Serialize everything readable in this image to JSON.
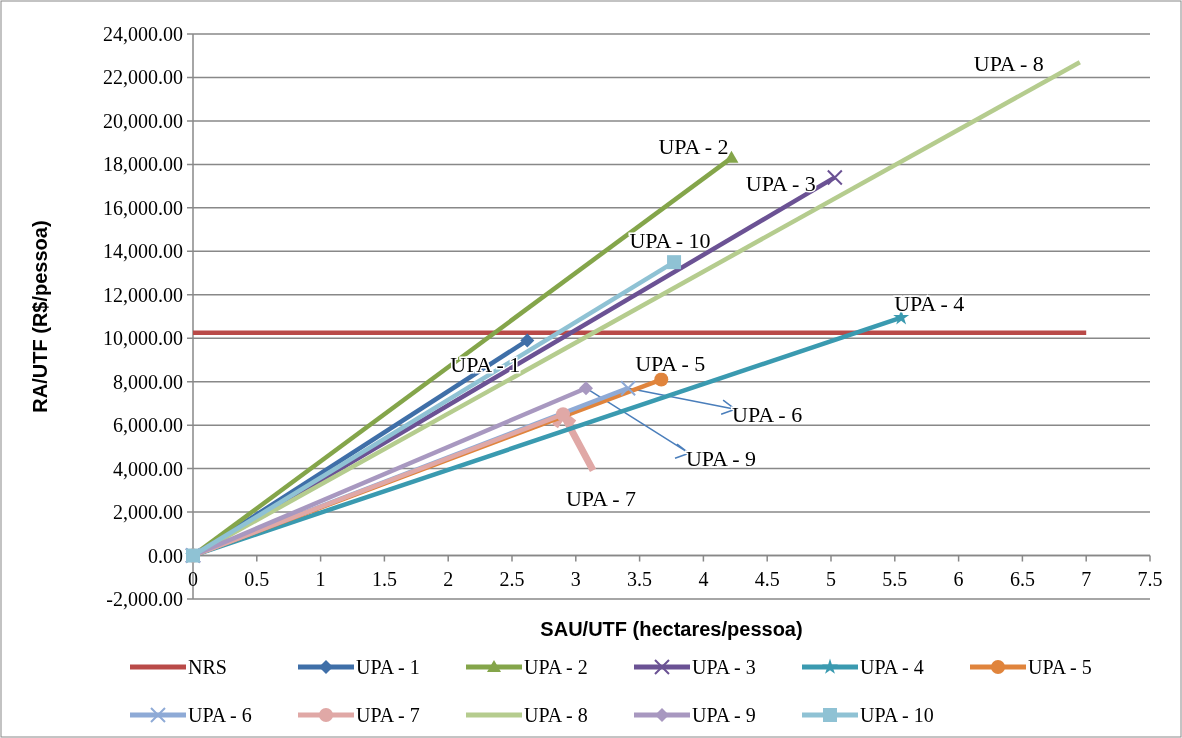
{
  "chart_data": {
    "type": "line",
    "xlabel": "SAU/UTF (hectares/pessoa)",
    "ylabel": "RA/UTF (R$/pessoa)",
    "xlim": [
      0,
      7.5
    ],
    "xticks": [
      0,
      0.5,
      1,
      1.5,
      2,
      2.5,
      3,
      3.5,
      4,
      4.5,
      5,
      5.5,
      6,
      6.5,
      7,
      7.5
    ],
    "ylim": [
      -2000,
      24000
    ],
    "yticks": [
      {
        "value": -2000,
        "label": "-2,000.00"
      },
      {
        "value": 0,
        "label": "0.00"
      },
      {
        "value": 2000,
        "label": "2,000.00"
      },
      {
        "value": 4000,
        "label": "4,000.00"
      },
      {
        "value": 6000,
        "label": "6,000.00"
      },
      {
        "value": 8000,
        "label": "8,000.00"
      },
      {
        "value": 10000,
        "label": "10,000.00"
      },
      {
        "value": 12000,
        "label": "12,000.00"
      },
      {
        "value": 14000,
        "label": "14,000.00"
      },
      {
        "value": 16000,
        "label": "16,000.00"
      },
      {
        "value": 18000,
        "label": "18,000.00"
      },
      {
        "value": 20000,
        "label": "20,000.00"
      },
      {
        "value": 22000,
        "label": "22,000.00"
      },
      {
        "value": 24000,
        "label": "24,000.00"
      }
    ],
    "grid": "y",
    "legend": "bottom",
    "series": [
      {
        "name": "NRS",
        "color": "#b94a48",
        "marker": "none",
        "x": [
          0,
          7
        ],
        "values": [
          10250,
          10250
        ]
      },
      {
        "name": "UPA - 1",
        "color": "#3f6fa8",
        "marker": "diamond",
        "x": [
          0,
          2.62
        ],
        "values": [
          0,
          9900
        ]
      },
      {
        "name": "UPA - 2",
        "color": "#84a54a",
        "marker": "triangle",
        "x": [
          0,
          4.22
        ],
        "values": [
          0,
          18300
        ]
      },
      {
        "name": "UPA - 3",
        "color": "#6b5294",
        "marker": "cross",
        "x": [
          0,
          5.03
        ],
        "values": [
          0,
          17400
        ]
      },
      {
        "name": "UPA - 4",
        "color": "#3a9ab0",
        "marker": "star",
        "x": [
          0,
          5.55
        ],
        "values": [
          0,
          10950
        ]
      },
      {
        "name": "UPA - 5",
        "color": "#e0843c",
        "marker": "circle",
        "x": [
          0,
          3.67
        ],
        "values": [
          0,
          8100
        ]
      },
      {
        "name": "UPA - 6",
        "color": "#8eaad6",
        "marker": "cross",
        "x": [
          0,
          3.41
        ],
        "values": [
          0,
          7700
        ]
      },
      {
        "name": "UPA - 7",
        "color": "#e0a8a6",
        "marker": "circle",
        "x": [
          0,
          2.9
        ],
        "values": [
          0,
          6500
        ]
      },
      {
        "name": "UPA - 8",
        "color": "#b5cc8e",
        "marker": "none",
        "x": [
          0,
          6.95
        ],
        "values": [
          0,
          22700
        ]
      },
      {
        "name": "UPA - 9",
        "color": "#a898c0",
        "marker": "diamond",
        "x": [
          0,
          3.08
        ],
        "values": [
          0,
          7700
        ]
      },
      {
        "name": "UPA - 10",
        "color": "#8fc2d4",
        "marker": "square",
        "x": [
          0,
          3.77
        ],
        "values": [
          0,
          13500
        ]
      }
    ],
    "annotations": [
      {
        "text": "UPA - 1",
        "x": 2.62,
        "y": 9900
      },
      {
        "text": "UPA - 2",
        "x": 4.22,
        "y": 18300
      },
      {
        "text": "UPA - 3",
        "x": 5.03,
        "y": 17400
      },
      {
        "text": "UPA - 4",
        "x": 5.55,
        "y": 10950
      },
      {
        "text": "UPA - 5",
        "x": 3.67,
        "y": 8100
      },
      {
        "text": "UPA - 6",
        "x": 3.41,
        "y": 7700
      },
      {
        "text": "UPA - 7",
        "x": 2.9,
        "y": 6500
      },
      {
        "text": "UPA - 8",
        "x": 6.95,
        "y": 22700
      },
      {
        "text": "UPA - 9",
        "x": 3.08,
        "y": 7700
      },
      {
        "text": "UPA - 10",
        "x": 3.77,
        "y": 13500
      }
    ]
  }
}
